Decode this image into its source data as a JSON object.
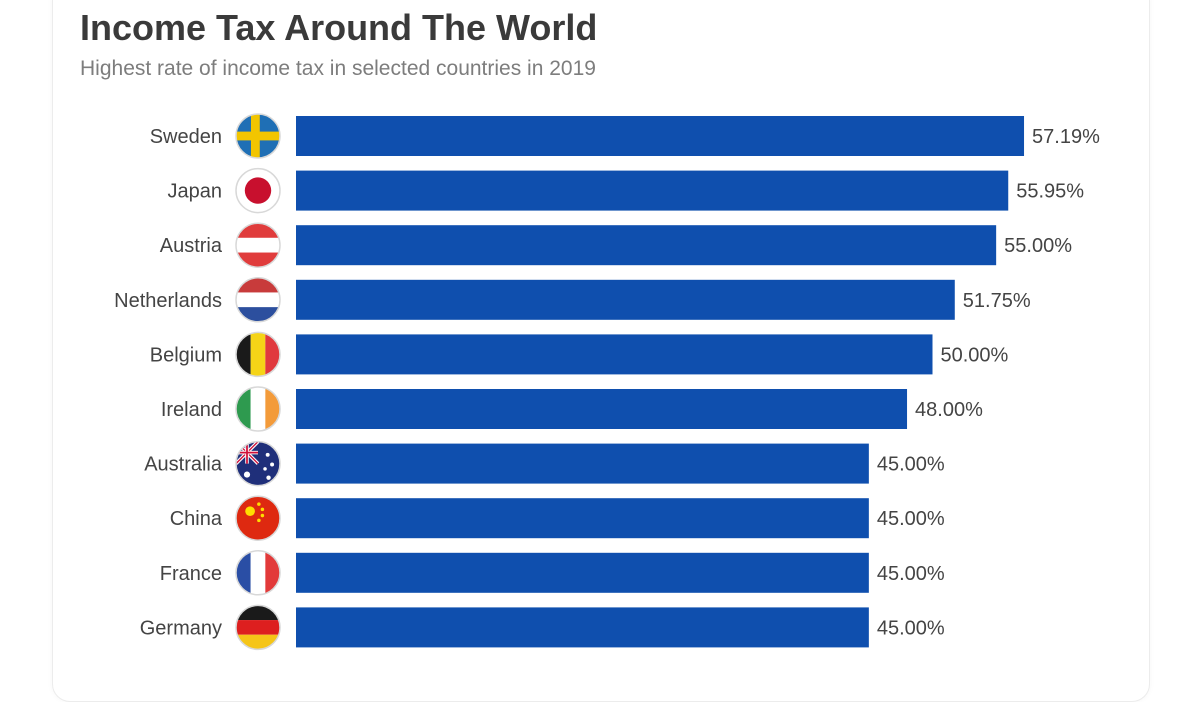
{
  "title": "Income Tax Around The World",
  "subtitle": "Highest rate of income tax in selected countries in 2019",
  "colors": {
    "bar": "#0f4fae",
    "text": "#444444",
    "title": "#3a3a3a",
    "subtitle": "#7d7d7d"
  },
  "chart_data": {
    "type": "bar",
    "orientation": "horizontal",
    "title": "Income Tax Around The World",
    "subtitle": "Highest rate of income tax in selected countries in 2019",
    "xlabel": "",
    "ylabel": "",
    "grid": false,
    "legend": "none",
    "xlim": [
      0,
      60
    ],
    "unit": "%",
    "categories": [
      "Sweden",
      "Japan",
      "Austria",
      "Netherlands",
      "Belgium",
      "Ireland",
      "Australia",
      "China",
      "France",
      "Germany"
    ],
    "values": [
      57.19,
      55.95,
      55.0,
      51.75,
      50.0,
      48.0,
      45.0,
      45.0,
      45.0,
      45.0
    ],
    "value_labels": [
      "57.19%",
      "55.95%",
      "55.00%",
      "51.75%",
      "50.00%",
      "48.00%",
      "45.00%",
      "45.00%",
      "45.00%",
      "45.00%"
    ],
    "flag_icons": [
      "sweden-flag-icon",
      "japan-flag-icon",
      "austria-flag-icon",
      "netherlands-flag-icon",
      "belgium-flag-icon",
      "ireland-flag-icon",
      "australia-flag-icon",
      "china-flag-icon",
      "france-flag-icon",
      "germany-flag-icon"
    ]
  }
}
